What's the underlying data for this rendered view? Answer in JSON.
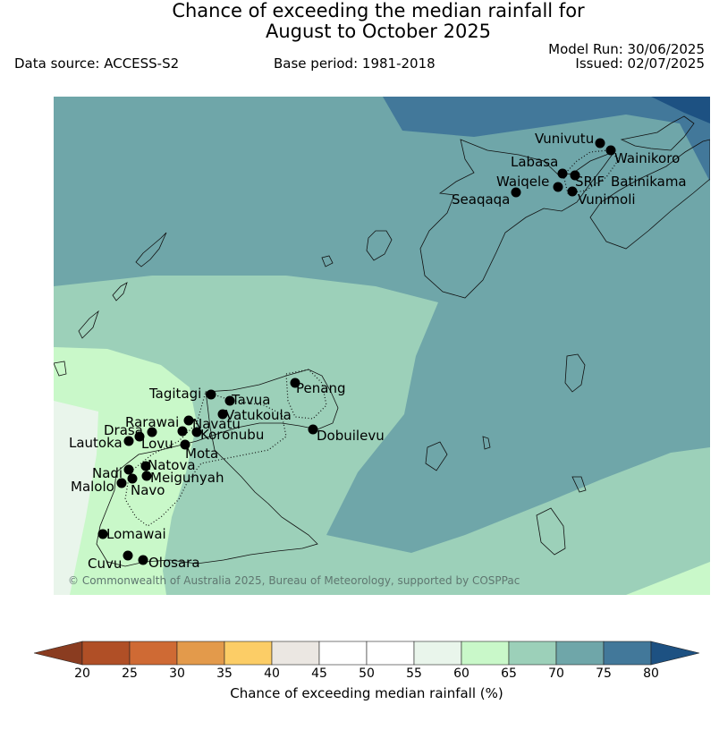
{
  "header": {
    "title_line1": "Chance of exceeding the median rainfall for",
    "title_line2": "August to October 2025",
    "data_source": "Data source: ACCESS-S2",
    "base_period": "Base period: 1981-2018",
    "model_run": "Model Run: 30/06/2025",
    "issued": "Issued: 02/07/2025"
  },
  "map": {
    "copyright": "© Commonwealth of Australia 2025, Bureau of Meteorology, supported by COSPPac",
    "stations": [
      "Vunivutu",
      "Wainikoro",
      "Labasa",
      "SRIF",
      "Batinikama",
      "Waiqele",
      "Seaqaqa",
      "Vunimoli",
      "Penang",
      "Tagitagi",
      "Tavua",
      "Vatukoula",
      "Rarawai",
      "Navatu",
      "Koronubu",
      "Drasa",
      "Lautoka",
      "Lovu",
      "Mota",
      "Dobuilevu",
      "Natova",
      "Nadi",
      "Meigunyah",
      "Malolo",
      "Navo",
      "Lomawai",
      "Cuvu",
      "Olosara"
    ]
  },
  "legend": {
    "ticks": [
      "20",
      "25",
      "30",
      "35",
      "40",
      "45",
      "50",
      "55",
      "60",
      "65",
      "70",
      "75",
      "80"
    ],
    "label": "Chance of exceeding median rainfall (%)",
    "colors": {
      "below_20": "#8a3c20",
      "20-25": "#b04f26",
      "25-30": "#cf6a34",
      "30-35": "#e39a4b",
      "35-40": "#fccd66",
      "40-45": "#ebe7e2",
      "45-50": "#ffffff",
      "50-55": "#ffffff",
      "55-60": "#e9f5eb",
      "60-65": "#c9f8c9",
      "65-70": "#9cd0b9",
      "70-75": "#6fa6a9",
      "75-80": "#42789a",
      "above_80": "#1d5182"
    }
  }
}
